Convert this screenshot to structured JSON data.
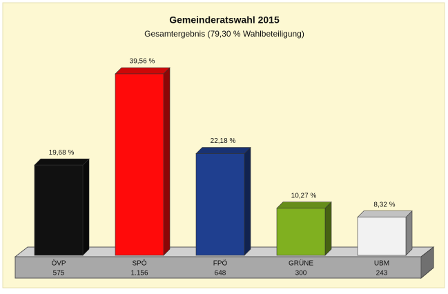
{
  "chart_data": {
    "type": "bar3d",
    "title": "Gemeinderatswahl 2015",
    "subtitle": "Gesamtergebnis (79,30 % Wahlbeteiligung)",
    "categories": [
      "ÖVP",
      "SPÖ",
      "FPÖ",
      "GRÜNE",
      "UBM"
    ],
    "values": [
      19.68,
      39.56,
      22.18,
      10.27,
      8.32
    ],
    "value_labels": [
      "19,68 %",
      "39,56 %",
      "22,18 %",
      "10,27 %",
      "8,32 %"
    ],
    "votes": [
      575,
      {
        "value": 1156,
        "label": "1.156"
      },
      648,
      300,
      243
    ],
    "colors": [
      "#111111",
      "#ff0a0a",
      "#1f3f8f",
      "#80b020",
      "#f2f2f2"
    ]
  }
}
